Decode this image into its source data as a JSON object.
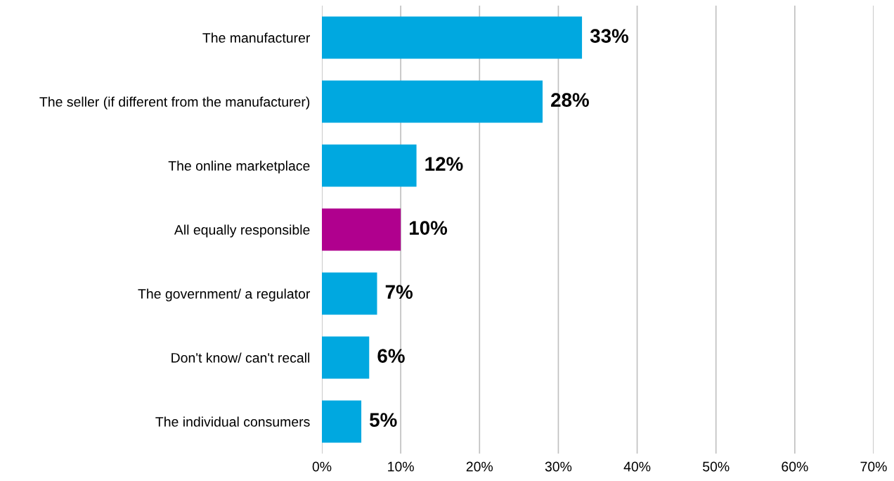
{
  "chart_data": {
    "type": "bar",
    "orientation": "horizontal",
    "categories": [
      "The manufacturer",
      "The seller (if different from the manufacturer)",
      "The online marketplace",
      "All equally responsible",
      "The government/ a regulator",
      "Don't know/ can't recall",
      "The individual consumers"
    ],
    "values": [
      33,
      28,
      12,
      10,
      7,
      6,
      5
    ],
    "colors": [
      "#00a8e0",
      "#00a8e0",
      "#00a8e0",
      "#b0008e",
      "#00a8e0",
      "#00a8e0",
      "#00a8e0"
    ],
    "value_labels": [
      "33%",
      "28%",
      "12%",
      "10%",
      "7%",
      "6%",
      "5%"
    ],
    "xlim": [
      0,
      70
    ],
    "xticks": [
      {
        "value": 0,
        "label": "0%"
      },
      {
        "value": 10,
        "label": "10%"
      },
      {
        "value": 20,
        "label": "20%"
      },
      {
        "value": 30,
        "label": "30%"
      },
      {
        "value": 40,
        "label": "40%"
      },
      {
        "value": 50,
        "label": "50%"
      },
      {
        "value": 60,
        "label": "60%"
      },
      {
        "value": 70,
        "label": "70%"
      }
    ],
    "grid": "x",
    "legend": false
  }
}
